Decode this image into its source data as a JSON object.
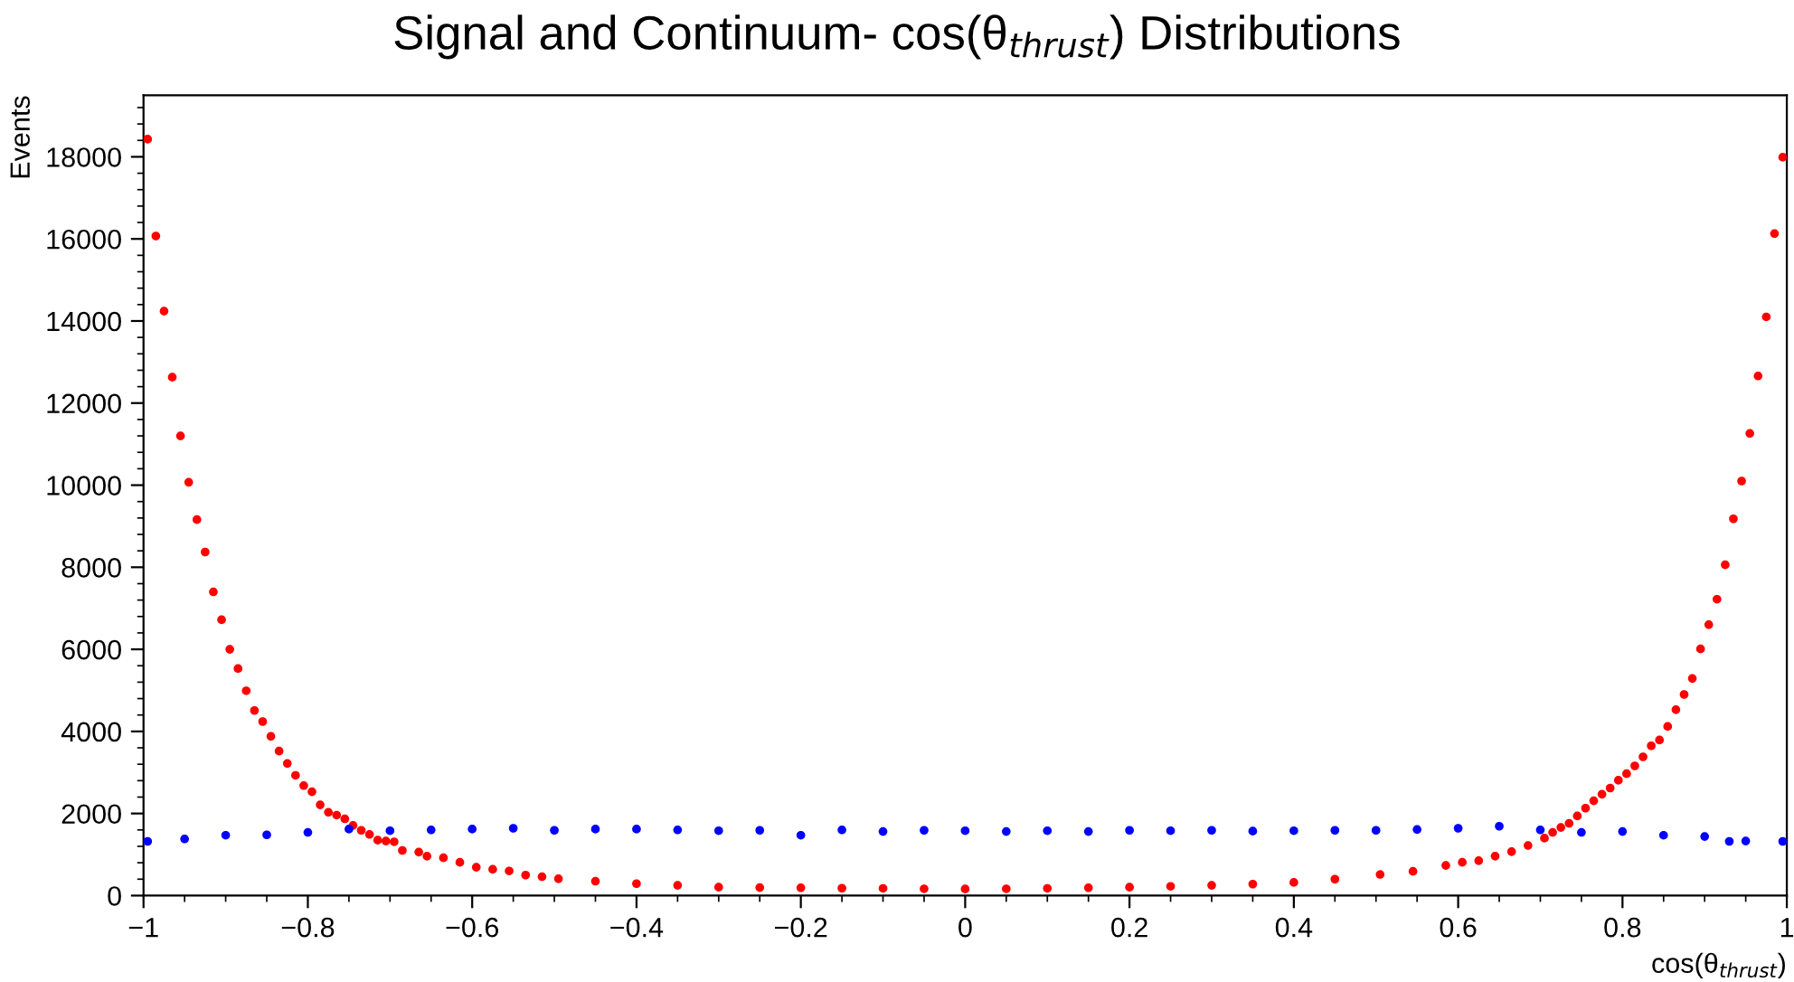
{
  "chart_data": {
    "type": "scatter",
    "title": "Signal and Continuum- cos(θ$_{thrust}$) Distributions",
    "xlabel": "cos(θ$_{thrust}$)",
    "ylabel": "Events",
    "xlim": [
      -1,
      1
    ],
    "ylim": [
      0,
      19500
    ],
    "xticks": [
      {
        "value": -1,
        "label": "−1"
      },
      {
        "value": -0.8,
        "label": "−0.8"
      },
      {
        "value": -0.6,
        "label": "−0.6"
      },
      {
        "value": -0.4,
        "label": "−0.4"
      },
      {
        "value": -0.2,
        "label": "−0.2"
      },
      0,
      0.2,
      0.4,
      0.6,
      0.8,
      1
    ],
    "yticks": [
      0,
      2000,
      4000,
      6000,
      8000,
      10000,
      12000,
      14000,
      16000,
      18000
    ],
    "grid": false,
    "legend": false,
    "marker": "circle",
    "series": [
      {
        "color": "#ff0000",
        "x": [
          -0.995,
          -0.985,
          -0.975,
          -0.965,
          -0.955,
          -0.945,
          -0.935,
          -0.925,
          -0.915,
          -0.905,
          -0.895,
          -0.885,
          -0.875,
          -0.865,
          -0.855,
          -0.845,
          -0.835,
          -0.825,
          -0.815,
          -0.805,
          -0.795,
          -0.785,
          -0.775,
          -0.765,
          -0.755,
          -0.745,
          -0.735,
          -0.725,
          -0.715,
          -0.705,
          -0.695,
          -0.685,
          -0.665,
          -0.655,
          -0.635,
          -0.615,
          -0.595,
          -0.575,
          -0.555,
          -0.535,
          -0.515,
          -0.495,
          -0.45,
          -0.4,
          -0.35,
          -0.3,
          -0.25,
          -0.2,
          -0.15,
          -0.1,
          -0.05,
          0.0,
          0.05,
          0.1,
          0.15,
          0.2,
          0.25,
          0.3,
          0.35,
          0.4,
          0.45,
          0.505,
          0.545,
          0.585,
          0.605,
          0.625,
          0.645,
          0.665,
          0.685,
          0.705,
          0.715,
          0.725,
          0.735,
          0.745,
          0.755,
          0.765,
          0.775,
          0.785,
          0.795,
          0.805,
          0.815,
          0.825,
          0.835,
          0.845,
          0.855,
          0.865,
          0.875,
          0.885,
          0.895,
          0.905,
          0.915,
          0.925,
          0.935,
          0.945,
          0.955,
          0.965,
          0.975,
          0.985,
          0.995
        ],
        "values": [
          18430,
          16070,
          14240,
          12630,
          11200,
          10070,
          9160,
          8370,
          7400,
          6720,
          6000,
          5530,
          4990,
          4510,
          4240,
          3880,
          3520,
          3220,
          2930,
          2680,
          2530,
          2210,
          2030,
          1960,
          1870,
          1710,
          1590,
          1490,
          1350,
          1330,
          1310,
          1100,
          1060,
          960,
          920,
          810,
          690,
          640,
          600,
          500,
          460,
          410,
          350,
          290,
          250,
          205,
          195,
          190,
          180,
          176,
          165,
          160,
          165,
          176,
          190,
          205,
          225,
          250,
          280,
          320,
          400,
          515,
          590,
          735,
          810,
          850,
          960,
          1070,
          1220,
          1400,
          1540,
          1660,
          1760,
          1940,
          2130,
          2310,
          2470,
          2620,
          2810,
          2970,
          3160,
          3380,
          3650,
          3790,
          4120,
          4530,
          4900,
          5290,
          6010,
          6600,
          7220,
          8060,
          9180,
          10100,
          11260,
          12660,
          14100,
          16130,
          17990
        ]
      },
      {
        "color": "#0000ff",
        "x": [
          -0.995,
          -0.95,
          -0.9,
          -0.85,
          -0.8,
          -0.75,
          -0.7,
          -0.65,
          -0.6,
          -0.55,
          -0.5,
          -0.45,
          -0.4,
          -0.35,
          -0.3,
          -0.25,
          -0.2,
          -0.15,
          -0.1,
          -0.05,
          0.0,
          0.05,
          0.1,
          0.15,
          0.2,
          0.25,
          0.3,
          0.35,
          0.4,
          0.45,
          0.5,
          0.55,
          0.6,
          0.65,
          0.7,
          0.75,
          0.8,
          0.85,
          0.9,
          0.93,
          0.95,
          0.995
        ],
        "values": [
          1320,
          1380,
          1470,
          1480,
          1540,
          1620,
          1580,
          1600,
          1620,
          1640,
          1590,
          1620,
          1620,
          1600,
          1580,
          1590,
          1470,
          1600,
          1560,
          1590,
          1580,
          1560,
          1580,
          1560,
          1590,
          1580,
          1590,
          1570,
          1580,
          1590,
          1590,
          1610,
          1640,
          1690,
          1600,
          1540,
          1560,
          1470,
          1440,
          1320,
          1330,
          1320
        ]
      }
    ]
  }
}
